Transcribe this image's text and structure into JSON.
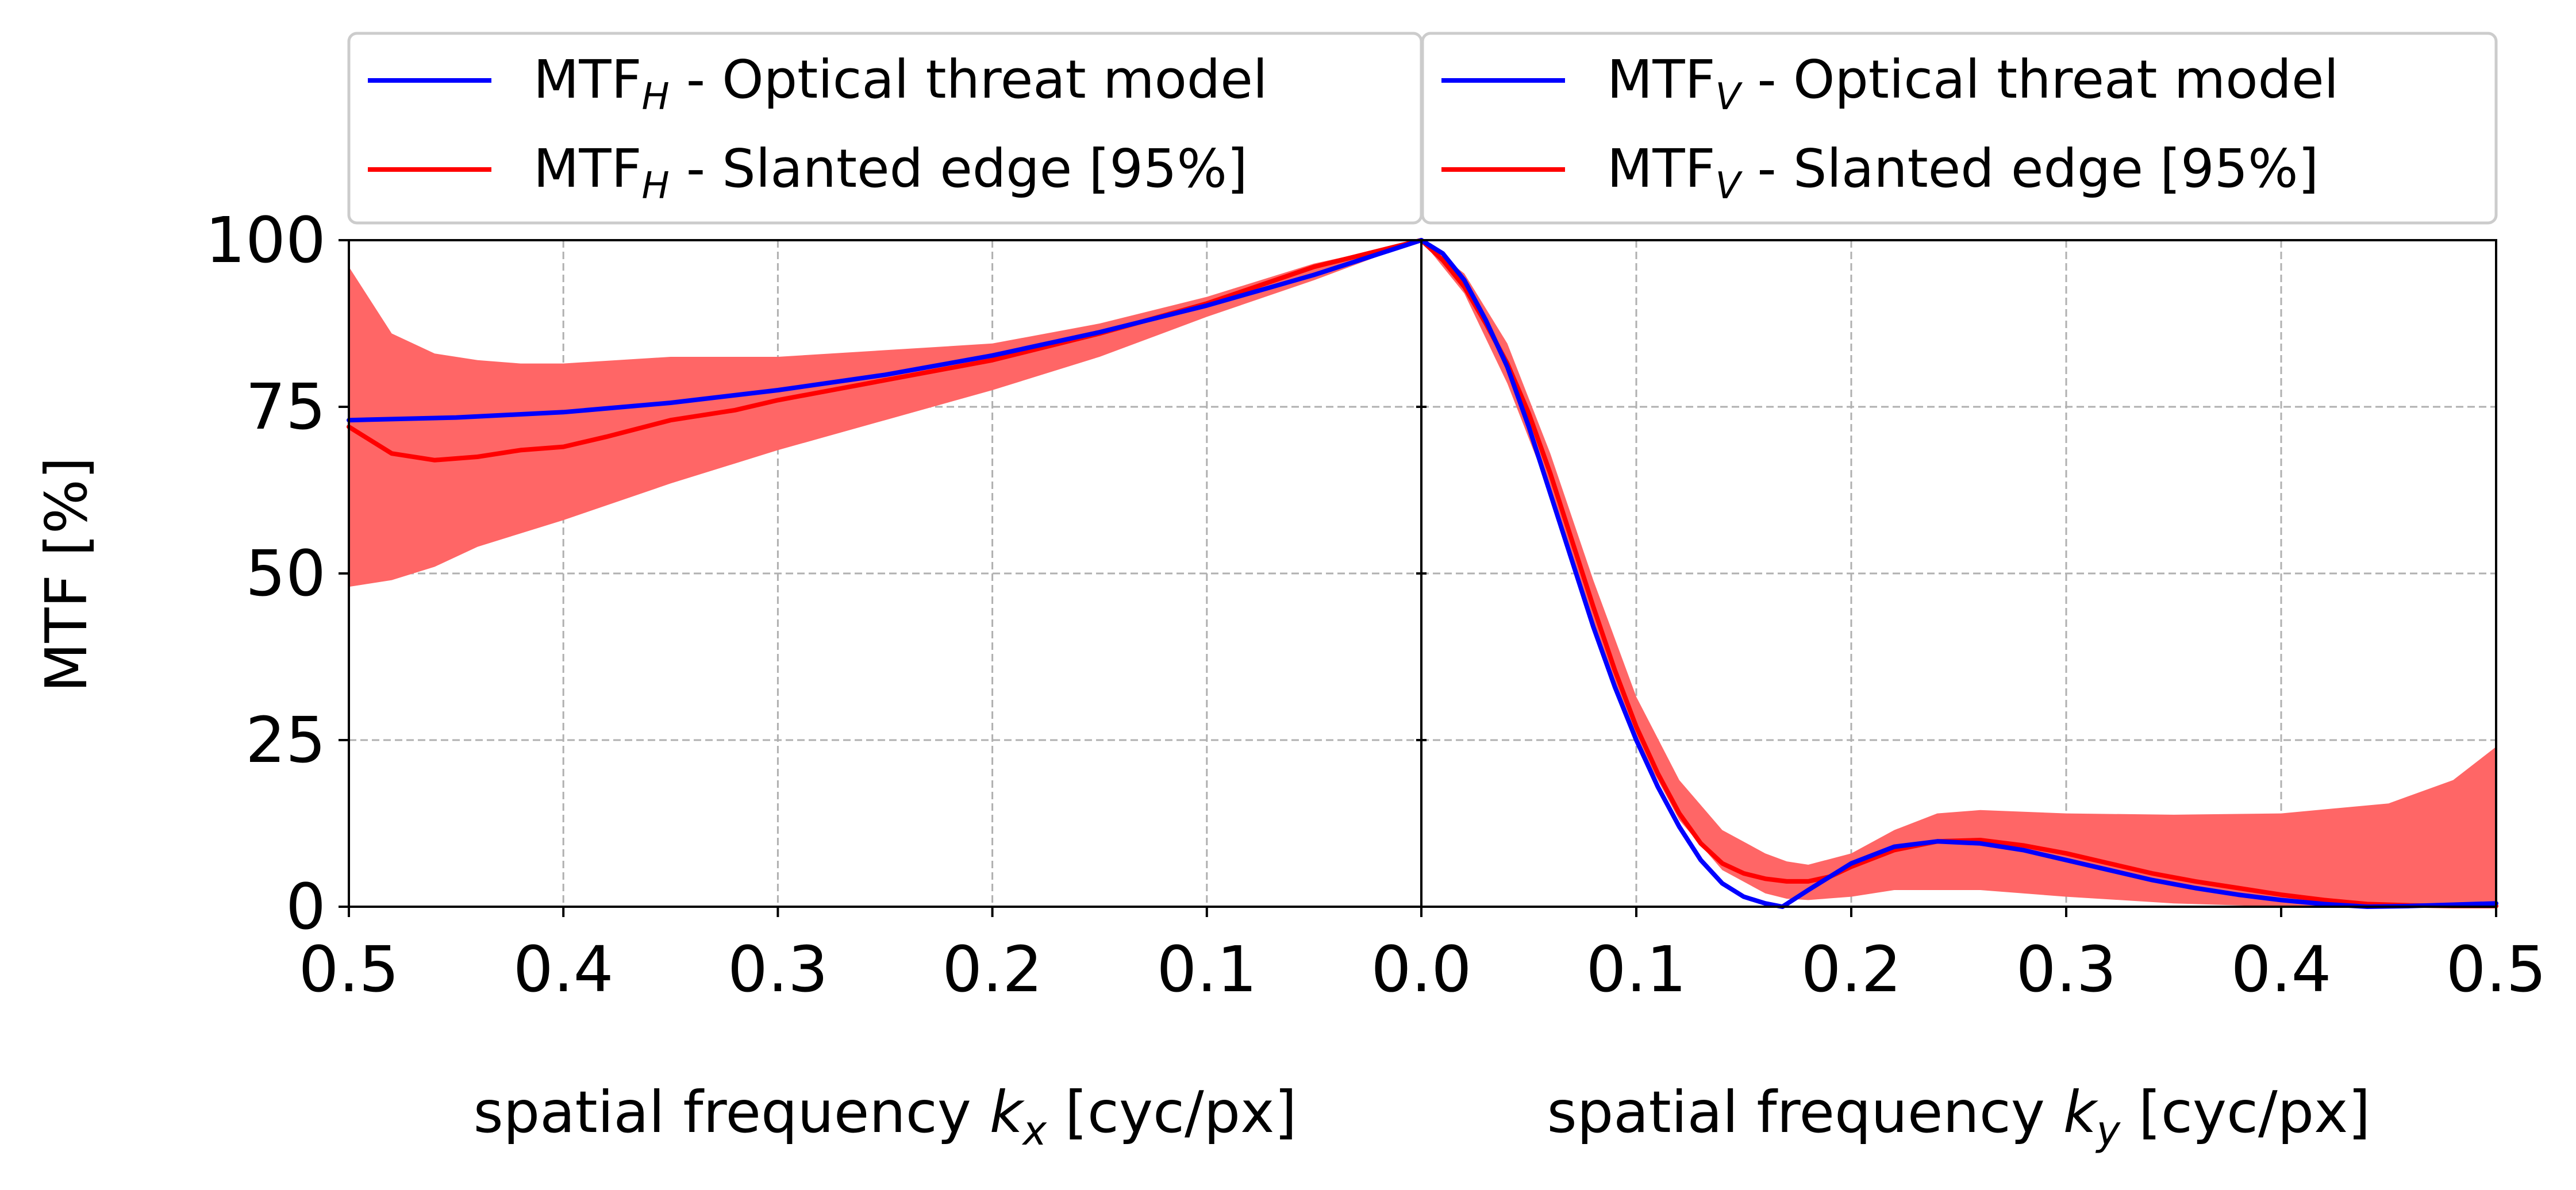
{
  "chart_data": [
    {
      "type": "line",
      "panel": "left",
      "x_reversed": true,
      "xlim": [
        0.0,
        0.5
      ],
      "ylim": [
        0,
        100
      ],
      "grid": true,
      "ylabel": "MTF [%]",
      "xlabel": {
        "prefix": "spatial frequency ",
        "var": "k",
        "sub": "x",
        "suffix": " [cyc/px]"
      },
      "x_ticks": [
        {
          "value": 0.5,
          "label": "0.5"
        },
        {
          "value": 0.4,
          "label": "0.4"
        },
        {
          "value": 0.3,
          "label": "0.3"
        },
        {
          "value": 0.2,
          "label": "0.2"
        },
        {
          "value": 0.1,
          "label": "0.1"
        },
        {
          "value": 0.0,
          "label": "0.0"
        }
      ],
      "y_ticks": [
        {
          "value": 0,
          "label": "0"
        },
        {
          "value": 25,
          "label": "25"
        },
        {
          "value": 50,
          "label": "50"
        },
        {
          "value": 75,
          "label": "75"
        },
        {
          "value": 100,
          "label": "100"
        }
      ],
      "legend": {
        "placement": "top",
        "entries": [
          {
            "base": "MTF",
            "sub": "H",
            "text": " - Optical threat model",
            "color": "#0000ff"
          },
          {
            "base": "MTF",
            "sub": "H",
            "text": " - Slanted edge [95%]",
            "color": "#ff0000"
          }
        ]
      },
      "series": [
        {
          "name": "MTF_H - Optical threat model",
          "color": "#0000ff",
          "x": [
            0.5,
            0.45,
            0.4,
            0.35,
            0.3,
            0.25,
            0.2,
            0.15,
            0.1,
            0.05,
            0.0
          ],
          "y": [
            73,
            73.4,
            74.2,
            75.6,
            77.5,
            79.8,
            82.7,
            86.2,
            90.2,
            94.8,
            100
          ]
        },
        {
          "name": "MTF_H - Slanted edge [95%]",
          "color": "#ff0000",
          "x": [
            0.5,
            0.48,
            0.46,
            0.44,
            0.42,
            0.4,
            0.38,
            0.35,
            0.32,
            0.3,
            0.25,
            0.2,
            0.15,
            0.1,
            0.05,
            0.0
          ],
          "y": [
            72,
            68,
            67,
            67.5,
            68.5,
            69,
            70.5,
            73,
            74.5,
            76,
            79,
            82,
            86,
            90.5,
            96,
            100
          ]
        }
      ],
      "band": {
        "color": "#ff6666",
        "x": [
          0.5,
          0.48,
          0.46,
          0.44,
          0.42,
          0.4,
          0.35,
          0.3,
          0.25,
          0.2,
          0.15,
          0.1,
          0.05,
          0.0
        ],
        "upper": [
          96,
          86,
          83,
          82,
          81.5,
          81.5,
          82.5,
          82.5,
          83.5,
          84.5,
          87.5,
          91.5,
          96.5,
          100
        ],
        "lower": [
          48,
          49,
          51,
          54,
          56,
          58,
          63.5,
          68.5,
          73,
          77.5,
          82.5,
          88.5,
          94,
          100
        ]
      }
    },
    {
      "type": "line",
      "panel": "right",
      "x_reversed": false,
      "xlim": [
        0.0,
        0.5
      ],
      "ylim": [
        0,
        100
      ],
      "grid": true,
      "xlabel": {
        "prefix": "spatial frequency ",
        "var": "k",
        "sub": "y",
        "suffix": " [cyc/px]"
      },
      "x_ticks": [
        {
          "value": 0.0,
          "label": "0.0"
        },
        {
          "value": 0.1,
          "label": "0.1"
        },
        {
          "value": 0.2,
          "label": "0.2"
        },
        {
          "value": 0.3,
          "label": "0.3"
        },
        {
          "value": 0.4,
          "label": "0.4"
        },
        {
          "value": 0.5,
          "label": "0.5"
        }
      ],
      "legend": {
        "placement": "top",
        "entries": [
          {
            "base": "MTF",
            "sub": "V",
            "text": " - Optical threat model",
            "color": "#0000ff"
          },
          {
            "base": "MTF",
            "sub": "V",
            "text": " - Slanted edge [95%]",
            "color": "#ff0000"
          }
        ]
      },
      "series": [
        {
          "name": "MTF_V - Optical threat model",
          "color": "#0000ff",
          "x": [
            0.0,
            0.01,
            0.02,
            0.03,
            0.04,
            0.05,
            0.06,
            0.07,
            0.08,
            0.09,
            0.1,
            0.11,
            0.12,
            0.13,
            0.14,
            0.15,
            0.16,
            0.168,
            0.18,
            0.2,
            0.22,
            0.24,
            0.26,
            0.28,
            0.3,
            0.32,
            0.34,
            0.36,
            0.38,
            0.4,
            0.42,
            0.44,
            0.46,
            0.48,
            0.5
          ],
          "y": [
            100,
            98,
            94,
            88,
            81,
            72,
            62,
            52,
            42,
            33,
            25,
            18,
            12,
            7,
            3.5,
            1.5,
            0.5,
            0,
            2.5,
            6.5,
            9,
            9.8,
            9.5,
            8.5,
            7,
            5.5,
            4,
            2.8,
            1.8,
            1,
            0.4,
            0,
            0.1,
            0.3,
            0.5
          ]
        },
        {
          "name": "MTF_V - Slanted edge [95%]",
          "color": "#ff0000",
          "x": [
            0.0,
            0.01,
            0.02,
            0.03,
            0.04,
            0.05,
            0.06,
            0.07,
            0.08,
            0.09,
            0.1,
            0.11,
            0.12,
            0.13,
            0.14,
            0.15,
            0.16,
            0.17,
            0.18,
            0.19,
            0.2,
            0.22,
            0.24,
            0.26,
            0.28,
            0.3,
            0.32,
            0.34,
            0.36,
            0.38,
            0.4,
            0.42,
            0.44,
            0.46,
            0.48,
            0.5
          ],
          "y": [
            100,
            97,
            93,
            87.5,
            81.5,
            74,
            65,
            55,
            45,
            35.5,
            27,
            20,
            14,
            9.5,
            6.5,
            5,
            4.2,
            3.8,
            3.8,
            4.5,
            6,
            8.5,
            9.8,
            10,
            9.2,
            8,
            6.5,
            5,
            3.8,
            2.8,
            1.8,
            1,
            0.4,
            0.2,
            0.1,
            0.1
          ]
        }
      ],
      "band": {
        "color": "#ff6666",
        "x": [
          0.0,
          0.02,
          0.04,
          0.06,
          0.08,
          0.1,
          0.12,
          0.14,
          0.16,
          0.17,
          0.18,
          0.2,
          0.22,
          0.24,
          0.26,
          0.3,
          0.35,
          0.4,
          0.45,
          0.48,
          0.5
        ],
        "upper": [
          100,
          95,
          84.5,
          68,
          49,
          31.5,
          19,
          11.5,
          8,
          6.8,
          6.3,
          8,
          11.5,
          14,
          14.5,
          14,
          13.8,
          14,
          15.5,
          19,
          24
        ],
        "lower": [
          100,
          92,
          78.5,
          62,
          42,
          25,
          13,
          5.5,
          2,
          1.2,
          1,
          1.5,
          2.5,
          2.5,
          2.5,
          1.5,
          0.5,
          0,
          0,
          0,
          0
        ]
      }
    }
  ]
}
